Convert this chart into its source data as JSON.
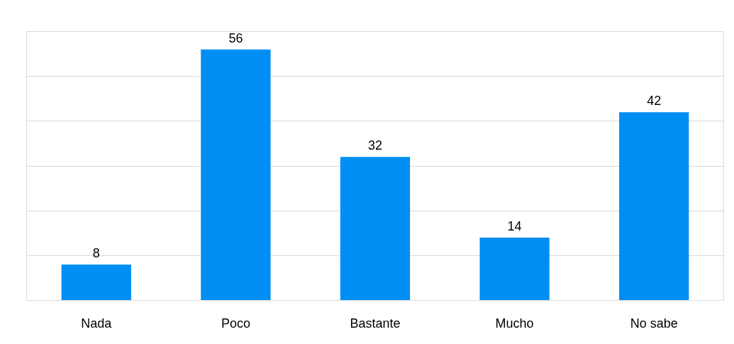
{
  "chart_data": {
    "type": "bar",
    "categories": [
      "Nada",
      "Poco",
      "Bastante",
      "Mucho",
      "No sabe"
    ],
    "values": [
      8,
      56,
      32,
      14,
      42
    ],
    "color": "#008ef4",
    "ylim": [
      0,
      60
    ],
    "yticks": [
      {
        "value": 0,
        "label": null
      },
      {
        "value": 10,
        "label": null
      },
      {
        "value": 20,
        "label": null
      },
      {
        "value": 30,
        "label": null
      },
      {
        "value": 40,
        "label": null
      },
      {
        "value": 50,
        "label": null
      },
      {
        "value": 60,
        "label": null
      }
    ],
    "tick_labels": "x",
    "grid": "y",
    "data_labels": true
  }
}
